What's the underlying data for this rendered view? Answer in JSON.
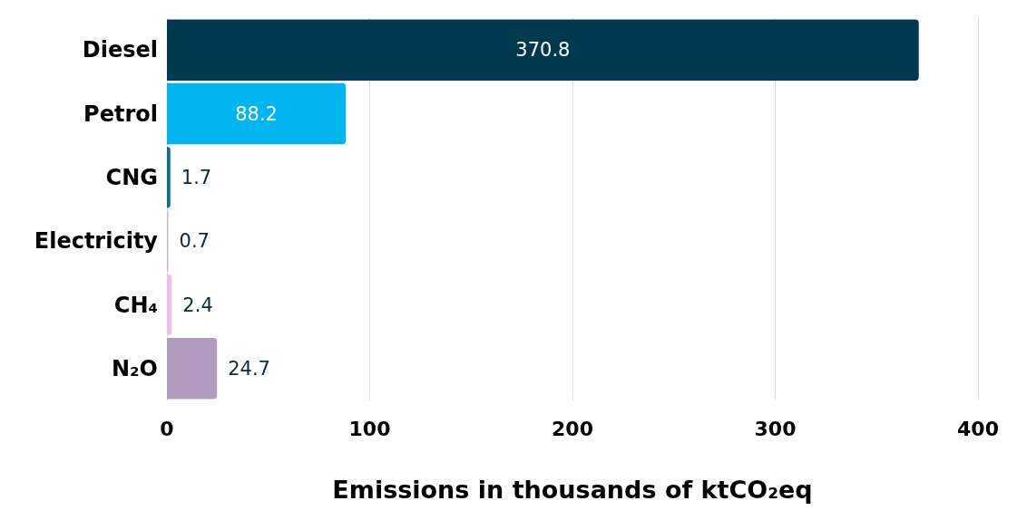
{
  "chart_data": {
    "type": "bar",
    "orientation": "horizontal",
    "xlabel": "Emissions in thousands of ktCO₂eq",
    "categories": [
      "Diesel",
      "Petrol",
      "CNG",
      "Electricity",
      "CH₄",
      "N₂O"
    ],
    "values": [
      370.8,
      88.2,
      1.7,
      0.7,
      2.4,
      24.7
    ],
    "colors": [
      "#00384f",
      "#00b5f0",
      "#0b6f8c",
      "#c8b4cf",
      "#f0c2e2",
      "#b09ac0"
    ],
    "xlim": [
      0,
      400
    ],
    "xticks": [
      0,
      100,
      200,
      300,
      400
    ],
    "grid": "x",
    "data_labels": true
  }
}
